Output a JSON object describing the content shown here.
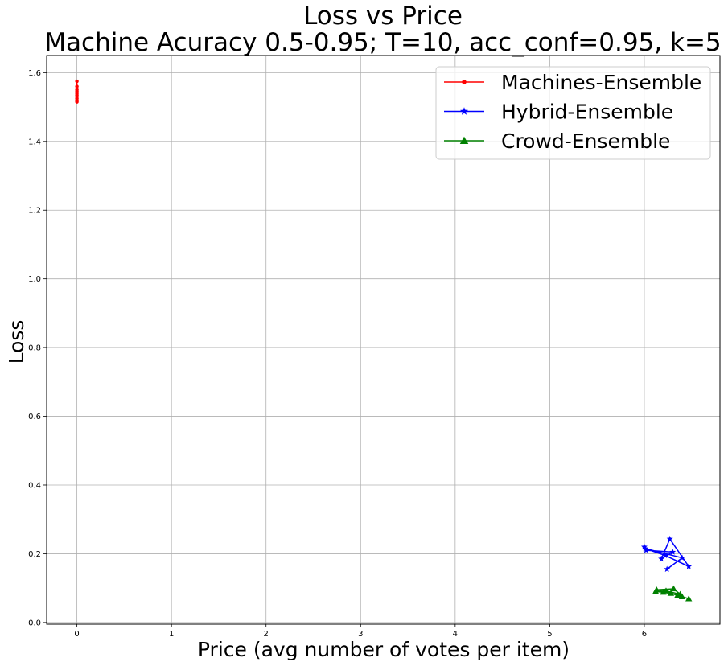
{
  "chart_data": {
    "type": "line",
    "title": "Loss vs Price",
    "subtitle": "Machine Acuracy 0.5-0.95; T=10, acc_conf=0.95, k=5",
    "xlabel": "Price (avg number of votes per item)",
    "ylabel": "Loss",
    "xlim": [
      -0.32,
      6.8
    ],
    "ylim": [
      -0.005,
      1.65
    ],
    "xticks": [
      0,
      1,
      2,
      3,
      4,
      5,
      6
    ],
    "yticks": [
      0.0,
      0.2,
      0.4,
      0.6,
      0.8,
      1.0,
      1.2,
      1.4,
      1.6
    ],
    "xtick_labels": [
      "0",
      "1",
      "2",
      "3",
      "4",
      "5",
      "6"
    ],
    "ytick_labels": [
      "0.0",
      "0.2",
      "0.4",
      "0.6",
      "0.8",
      "1.0",
      "1.2",
      "1.4",
      "1.6"
    ],
    "grid": true,
    "legend_position": "top-right",
    "series": [
      {
        "name": "Machines-Ensemble",
        "color": "#ff0000",
        "marker": "dot",
        "x": [
          0,
          0,
          0,
          0,
          0,
          0,
          0,
          0,
          0,
          0
        ],
        "y": [
          1.575,
          1.56,
          1.55,
          1.54,
          1.535,
          1.53,
          1.525,
          1.52,
          1.545,
          1.515
        ]
      },
      {
        "name": "Hybrid-Ensemble",
        "color": "#0000ff",
        "marker": "star",
        "x": [
          6.0,
          6.02,
          6.3,
          6.18,
          6.27,
          6.47,
          6.22,
          6.01,
          6.4,
          6.24
        ],
        "y": [
          0.22,
          0.21,
          0.205,
          0.185,
          0.243,
          0.163,
          0.195,
          0.215,
          0.188,
          0.155
        ]
      },
      {
        "name": "Crowd-Ensemble",
        "color": "#008000",
        "marker": "triangle",
        "x": [
          6.12,
          6.2,
          6.28,
          6.13,
          6.31,
          6.38,
          6.23,
          6.35,
          6.4,
          6.47
        ],
        "y": [
          0.09,
          0.088,
          0.085,
          0.095,
          0.098,
          0.082,
          0.092,
          0.078,
          0.075,
          0.069
        ]
      }
    ]
  }
}
